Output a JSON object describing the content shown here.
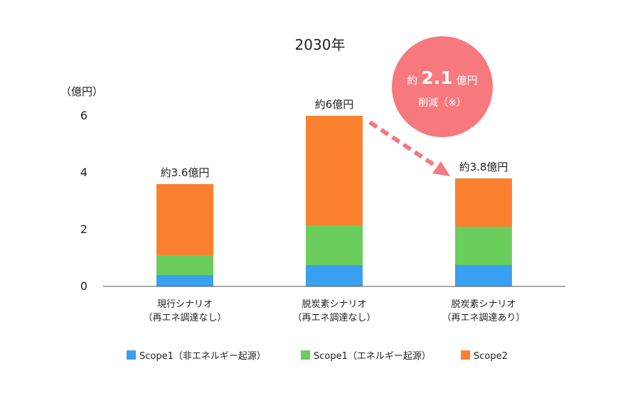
{
  "chart_data": {
    "type": "bar",
    "stacked": true,
    "title": "2030年",
    "ylabel": "（億円）",
    "ylim": [
      0,
      6
    ],
    "yticks": [
      0,
      2,
      4,
      6
    ],
    "grid": false,
    "categories": [
      [
        "現行シナリオ",
        "（再エネ調達なし）"
      ],
      [
        "脱炭素シナリオ",
        "（再エネ調達なし）"
      ],
      [
        "脱炭素シナリオ",
        "（再エネ調達あり）"
      ]
    ],
    "series": [
      {
        "name": "Scope1（非エネルギー起源）",
        "color": "#3AA0F2",
        "values": [
          0.4,
          0.75,
          0.75
        ]
      },
      {
        "name": "Scope1（エネルギー起源）",
        "color": "#6ACD5C",
        "values": [
          0.7,
          1.4,
          1.35
        ]
      },
      {
        "name": "Scope2",
        "color": "#FB8130",
        "values": [
          2.5,
          3.85,
          1.7
        ]
      }
    ],
    "total_labels": [
      "約3.6億円",
      "約6億円",
      "約3.8億円"
    ],
    "legend_position": "bottom",
    "annotation": {
      "prefix": "約",
      "value": "2.1",
      "unit": "億円",
      "sub": "削減（※）",
      "color": "#F7787D",
      "arrow_color": "#F7787D"
    }
  }
}
